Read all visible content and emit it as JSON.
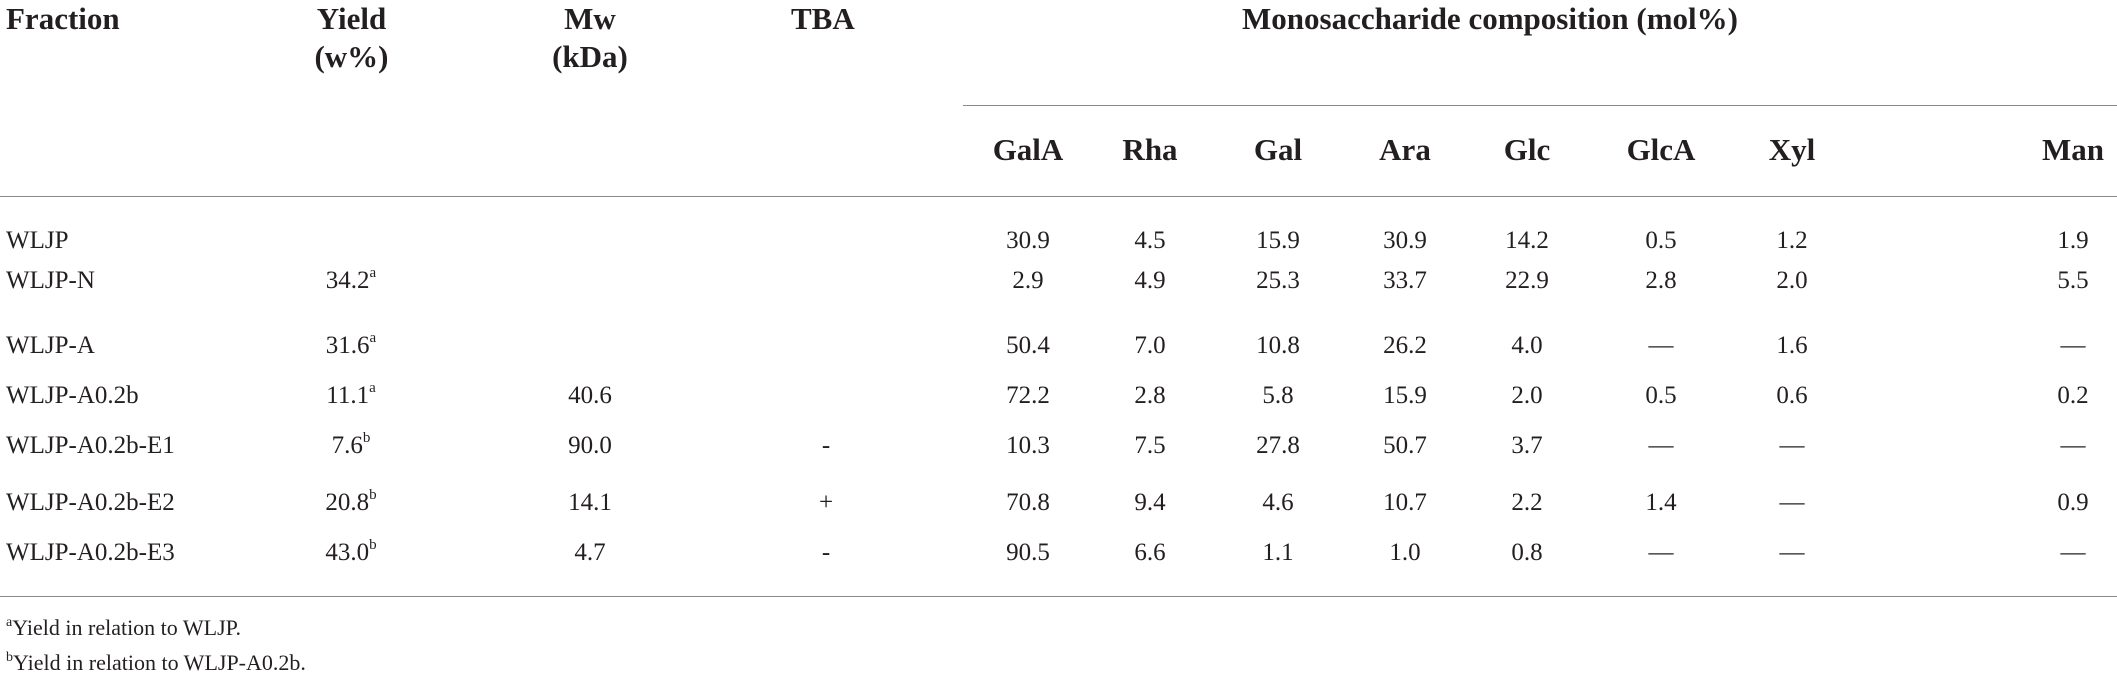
{
  "headers": {
    "fraction": "Fraction",
    "yield_l1": "Yield",
    "yield_l2": "(w%)",
    "mw_l1": "Mw",
    "mw_l2": "(kDa)",
    "tba": "TBA",
    "mono_group": "Monosaccharide composition (mol%)",
    "mono_cols": [
      "GalA",
      "Rha",
      "Gal",
      "Ara",
      "Glc",
      "GlcA",
      "Xyl",
      "Man"
    ]
  },
  "rows": [
    {
      "fraction": "WLJP",
      "yield": "",
      "yield_sup": "",
      "mw": "",
      "tba": "",
      "mono": [
        "30.9",
        "4.5",
        "15.9",
        "30.9",
        "14.2",
        "0.5",
        "1.2",
        "1.9"
      ]
    },
    {
      "fraction": "WLJP-N",
      "yield": "34.2",
      "yield_sup": "a",
      "mw": "",
      "tba": "",
      "mono": [
        "2.9",
        "4.9",
        "25.3",
        "33.7",
        "22.9",
        "2.8",
        "2.0",
        "5.5"
      ]
    },
    {
      "fraction": "WLJP-A",
      "yield": "31.6",
      "yield_sup": "a",
      "mw": "",
      "tba": "",
      "mono": [
        "50.4",
        "7.0",
        "10.8",
        "26.2",
        "4.0",
        "—",
        "1.6",
        "—"
      ]
    },
    {
      "fraction": "WLJP-A0.2b",
      "yield": "11.1",
      "yield_sup": "a",
      "mw": "40.6",
      "tba": "",
      "mono": [
        "72.2",
        "2.8",
        "5.8",
        "15.9",
        "2.0",
        "0.5",
        "0.6",
        "0.2"
      ]
    },
    {
      "fraction": "WLJP-A0.2b-E1",
      "yield": "7.6",
      "yield_sup": "b",
      "mw": "90.0",
      "tba": "-",
      "mono": [
        "10.3",
        "7.5",
        "27.8",
        "50.7",
        "3.7",
        "—",
        "—",
        "—"
      ]
    },
    {
      "fraction": "WLJP-A0.2b-E2",
      "yield": "20.8",
      "yield_sup": "b",
      "mw": "14.1",
      "tba": "+",
      "mono": [
        "70.8",
        "9.4",
        "4.6",
        "10.7",
        "2.2",
        "1.4",
        "—",
        "0.9"
      ]
    },
    {
      "fraction": "WLJP-A0.2b-E3",
      "yield": "43.0",
      "yield_sup": "b",
      "mw": "4.7",
      "tba": "-",
      "mono": [
        "90.5",
        "6.6",
        "1.1",
        "1.0",
        "0.8",
        "—",
        "—",
        "—"
      ]
    }
  ],
  "footnotes": [
    {
      "mark": "a",
      "text": "Yield in relation to WLJP."
    },
    {
      "mark": "b",
      "text": "Yield in relation to WLJP-A0.2b."
    }
  ]
}
